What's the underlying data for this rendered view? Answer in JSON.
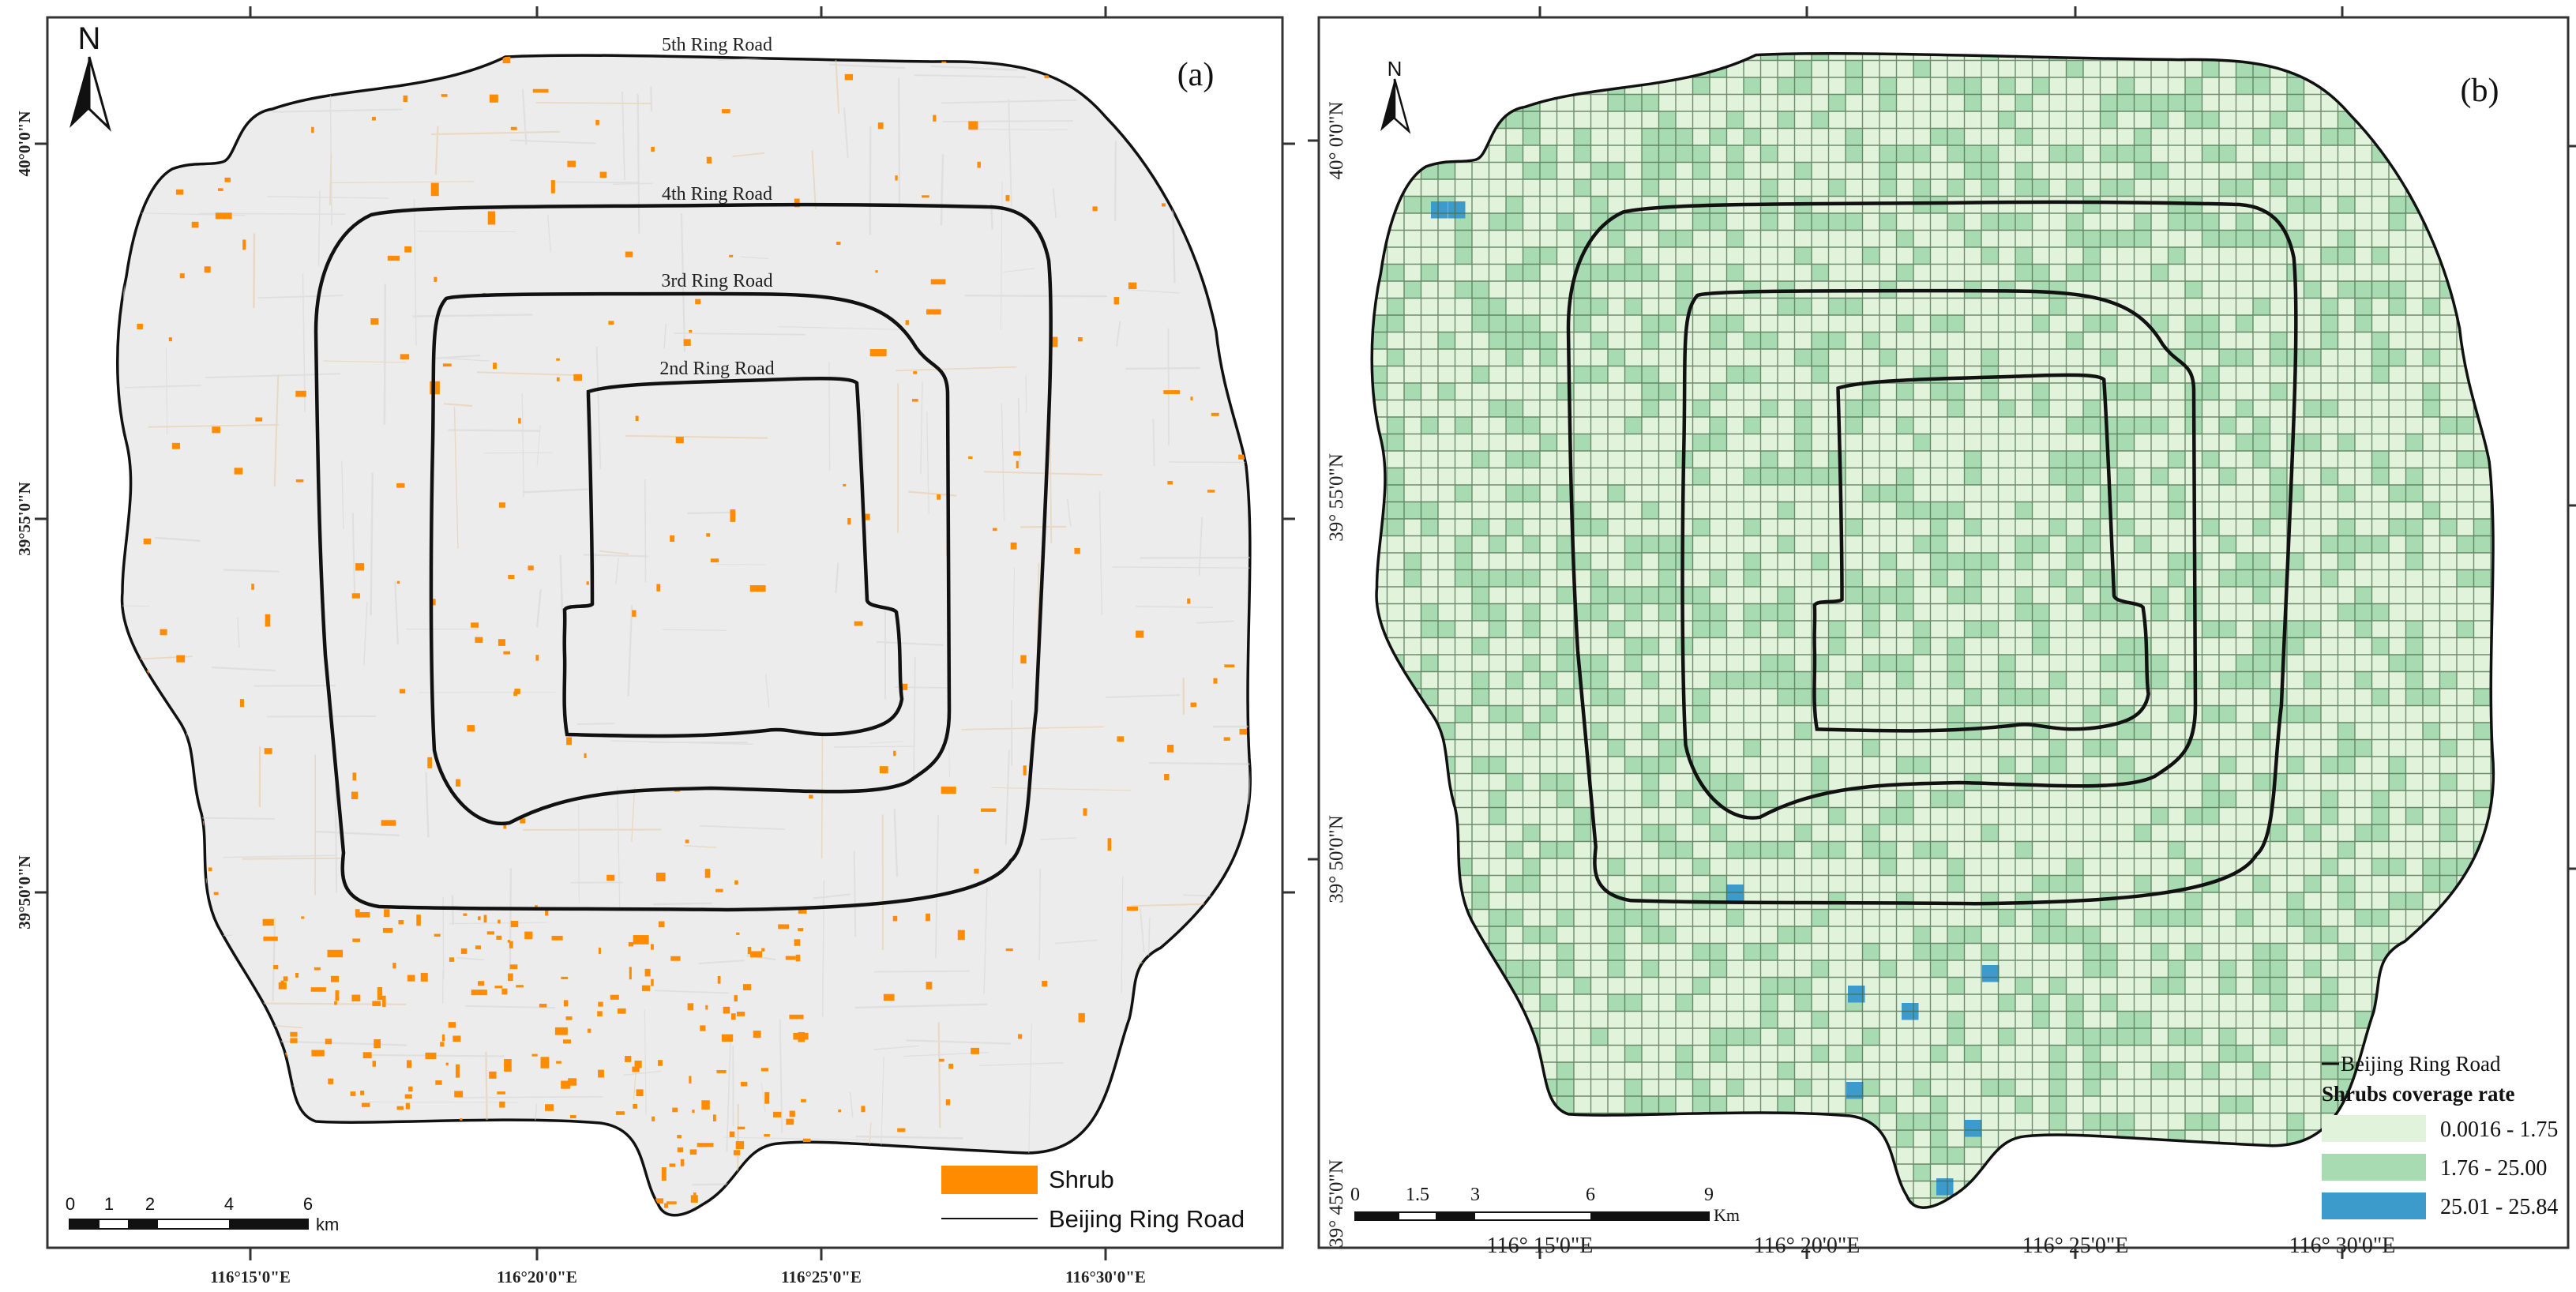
{
  "panel_a": {
    "label": "(a)",
    "north": "N",
    "ring_roads": [
      "5th Ring Road",
      "4th Ring Road",
      "3rd Ring Road",
      "2nd Ring Road"
    ],
    "lat_ticks": [
      "40°0'0\"N",
      "39°55'0\"N",
      "39°50'0\"N"
    ],
    "lon_ticks": [
      "116°15'0\"E",
      "116°20'0\"E",
      "116°25'0\"E",
      "116°30'0\"E"
    ],
    "scale_ticks": [
      "0",
      "1",
      "2",
      "4",
      "6"
    ],
    "scale_unit": "km",
    "legend": [
      {
        "label": "Shrub",
        "color": "#ff8c00"
      },
      {
        "label": "Beijing Ring Road",
        "color": "#000000"
      }
    ]
  },
  "panel_b": {
    "label": "(b)",
    "north": "N",
    "lat_ticks": [
      "40° 0'0\"N",
      "39° 55'0\"N",
      "39° 50'0\"N",
      "39° 45'0\"N"
    ],
    "lon_ticks": [
      "116° 15'0\"E",
      "116° 20'0\"E",
      "116° 25'0\"E",
      "116° 30'0\"E"
    ],
    "scale_ticks": [
      "0",
      "1.5",
      "3",
      "6",
      "9"
    ],
    "scale_unit": "Km",
    "legend_title": "Shrubs coverage rate",
    "legend_line": "Beijing Ring Road",
    "classes": [
      {
        "label": "0.0016 - 1.75",
        "color": "#e2f3dc"
      },
      {
        "label": "1.76 - 25.00",
        "color": "#a8dbb2"
      },
      {
        "label": "25.01 - 25.84",
        "color": "#3d9bcc"
      }
    ]
  }
}
